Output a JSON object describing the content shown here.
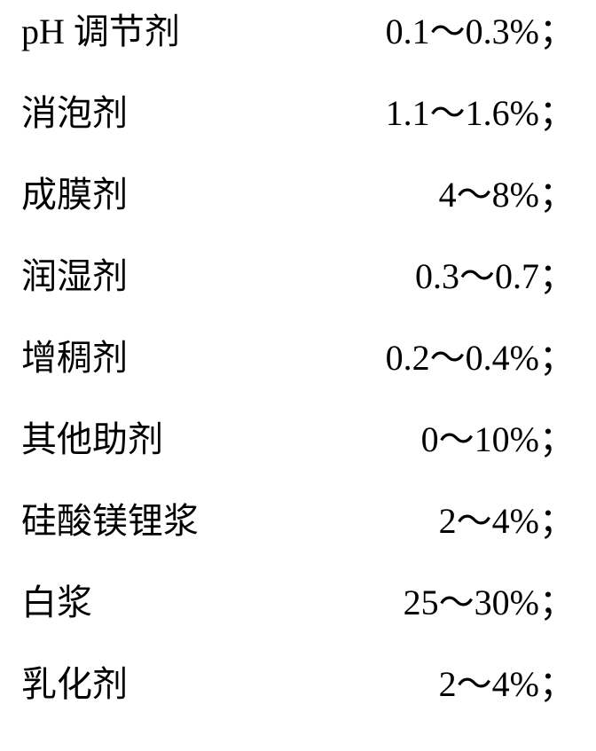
{
  "text_color": "#000000",
  "background_color": "#ffffff",
  "font_size_pt": 30,
  "rows": [
    {
      "label": "pH 调节剂",
      "value": "0.1～0.3%；"
    },
    {
      "label": "消泡剂",
      "value": "1.1～1.6%；"
    },
    {
      "label": "成膜剂",
      "value": "4～8%；"
    },
    {
      "label": "润湿剂",
      "value": "0.3～0.7；"
    },
    {
      "label": "增稠剂",
      "value": "0.2～0.4%；"
    },
    {
      "label": "其他助剂",
      "value": "0～10%；"
    },
    {
      "label": "硅酸镁锂浆",
      "value": "2～4%；"
    },
    {
      "label": "白浆",
      "value": "25～30%；"
    },
    {
      "label": "乳化剂",
      "value": "2～4%；"
    }
  ]
}
